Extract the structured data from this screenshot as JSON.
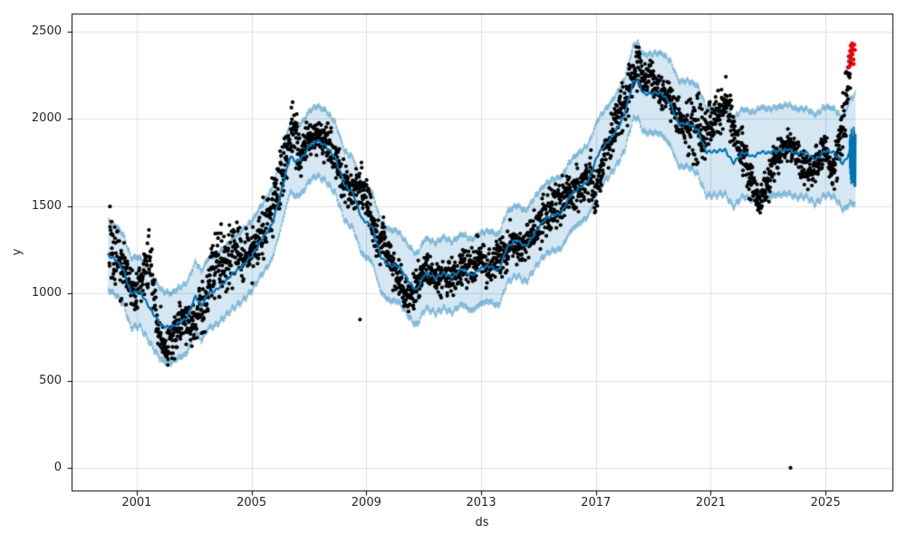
{
  "chart_data": {
    "type": "scatter",
    "title": "",
    "xlabel": "ds",
    "ylabel": "y",
    "grid": true,
    "legend": "none",
    "x_axis": {
      "ticks": [
        2001,
        2005,
        2009,
        2013,
        2017,
        2021,
        2025
      ],
      "range": [
        1998.73,
        2027.33
      ]
    },
    "y_axis": {
      "ticks": [
        0,
        500,
        1000,
        1500,
        2000,
        2500
      ],
      "range": [
        -130,
        2604
      ]
    },
    "colors": {
      "line": "#0072B2",
      "band_fill": "rgba(0,114,178,0.17)",
      "band_edge": "rgba(0,114,178,0.30)",
      "observations": "#000000",
      "anomaly": "#f20000",
      "grid": "#e0e0e0",
      "frame": "#000000",
      "text": "#262626",
      "background": "#ffffff"
    },
    "observations": {
      "points_per_year": 115,
      "seed": 42,
      "marker_radius": 2.1,
      "path": [
        [
          2000.05,
          1280,
          240
        ],
        [
          2000.3,
          1200,
          220
        ],
        [
          2000.6,
          1100,
          220
        ],
        [
          2000.9,
          1000,
          160
        ],
        [
          2001.15,
          1050,
          200
        ],
        [
          2001.45,
          1200,
          230
        ],
        [
          2001.7,
          850,
          180
        ],
        [
          2002.0,
          680,
          110
        ],
        [
          2002.3,
          750,
          160
        ],
        [
          2002.6,
          850,
          170
        ],
        [
          2002.9,
          800,
          150
        ],
        [
          2003.2,
          900,
          180
        ],
        [
          2003.5,
          1000,
          200
        ],
        [
          2003.8,
          1220,
          270
        ],
        [
          2004.1,
          1150,
          200
        ],
        [
          2004.4,
          1270,
          250
        ],
        [
          2004.7,
          1200,
          150
        ],
        [
          2005.0,
          1230,
          180
        ],
        [
          2005.3,
          1300,
          200
        ],
        [
          2005.6,
          1450,
          220
        ],
        [
          2005.9,
          1600,
          220
        ],
        [
          2006.2,
          1800,
          230
        ],
        [
          2006.45,
          1980,
          240
        ],
        [
          2006.7,
          1800,
          180
        ],
        [
          2007.0,
          1880,
          140
        ],
        [
          2007.3,
          1900,
          120
        ],
        [
          2007.6,
          1860,
          130
        ],
        [
          2007.9,
          1800,
          150
        ],
        [
          2008.2,
          1650,
          150
        ],
        [
          2008.5,
          1560,
          140
        ],
        [
          2008.8,
          1620,
          150
        ],
        [
          2009.1,
          1500,
          150
        ],
        [
          2009.35,
          1300,
          160
        ],
        [
          2009.6,
          1300,
          150
        ],
        [
          2009.9,
          1150,
          130
        ],
        [
          2010.2,
          1050,
          140
        ],
        [
          2010.5,
          975,
          110
        ],
        [
          2010.8,
          1050,
          140
        ],
        [
          2011.1,
          1150,
          140
        ],
        [
          2011.4,
          1075,
          130
        ],
        [
          2011.7,
          1100,
          140
        ],
        [
          2012.0,
          1080,
          120
        ],
        [
          2012.3,
          1140,
          140
        ],
        [
          2012.6,
          1160,
          130
        ],
        [
          2012.9,
          1200,
          140
        ],
        [
          2013.2,
          1130,
          120
        ],
        [
          2013.5,
          1200,
          160
        ],
        [
          2013.8,
          1220,
          140
        ],
        [
          2014.1,
          1300,
          140
        ],
        [
          2014.4,
          1260,
          120
        ],
        [
          2014.7,
          1320,
          130
        ],
        [
          2015.0,
          1380,
          150
        ],
        [
          2015.3,
          1450,
          170
        ],
        [
          2015.6,
          1500,
          160
        ],
        [
          2015.9,
          1560,
          170
        ],
        [
          2016.2,
          1580,
          150
        ],
        [
          2016.5,
          1620,
          140
        ],
        [
          2016.8,
          1680,
          160
        ],
        [
          2017.0,
          1560,
          140
        ],
        [
          2017.3,
          1800,
          170
        ],
        [
          2017.6,
          1900,
          170
        ],
        [
          2017.9,
          2050,
          180
        ],
        [
          2018.2,
          2200,
          180
        ],
        [
          2018.45,
          2300,
          170
        ],
        [
          2018.7,
          2220,
          140
        ],
        [
          2018.95,
          2250,
          130
        ],
        [
          2019.2,
          2150,
          110
        ],
        [
          2019.5,
          2130,
          110
        ],
        [
          2019.8,
          2050,
          130
        ],
        [
          2020.1,
          1950,
          130
        ],
        [
          2020.45,
          1880,
          360
        ],
        [
          2020.7,
          1900,
          220
        ],
        [
          2021.0,
          1970,
          150
        ],
        [
          2021.3,
          2050,
          170
        ],
        [
          2021.55,
          2100,
          170
        ],
        [
          2021.8,
          1950,
          150
        ],
        [
          2022.1,
          1800,
          160
        ],
        [
          2022.4,
          1650,
          160
        ],
        [
          2022.65,
          1500,
          90
        ],
        [
          2022.9,
          1600,
          130
        ],
        [
          2023.2,
          1750,
          130
        ],
        [
          2023.5,
          1820,
          110
        ],
        [
          2023.8,
          1850,
          110
        ],
        [
          2024.1,
          1780,
          130
        ],
        [
          2024.4,
          1700,
          120
        ],
        [
          2024.7,
          1750,
          120
        ],
        [
          2025.0,
          1820,
          110
        ],
        [
          2025.25,
          1700,
          120
        ],
        [
          2025.5,
          1850,
          180
        ],
        [
          2025.7,
          2100,
          220
        ],
        [
          2025.88,
          2320,
          140
        ]
      ],
      "outliers": [
        [
          2008.78,
          850
        ],
        [
          2023.78,
          0
        ]
      ]
    },
    "anomalies_red": [
      [
        2025.8,
        2295
      ],
      [
        2025.82,
        2330
      ],
      [
        2025.83,
        2360
      ],
      [
        2025.85,
        2305
      ],
      [
        2025.86,
        2390
      ],
      [
        2025.88,
        2420
      ],
      [
        2025.89,
        2350
      ],
      [
        2025.9,
        2380
      ],
      [
        2025.92,
        2410
      ],
      [
        2025.93,
        2432
      ],
      [
        2025.94,
        2370
      ],
      [
        2025.95,
        2400
      ],
      [
        2025.97,
        2340
      ],
      [
        2025.98,
        2315
      ],
      [
        2026.0,
        2425
      ],
      [
        2026.02,
        2395
      ]
    ],
    "forecast": {
      "trend": [
        [
          2000.0,
          1215
        ],
        [
          2000.3,
          1180
        ],
        [
          2000.55,
          1135
        ],
        [
          2000.8,
          1010
        ],
        [
          2001.1,
          1005
        ],
        [
          2001.35,
          940
        ],
        [
          2001.6,
          885
        ],
        [
          2001.9,
          815
        ],
        [
          2002.2,
          793
        ],
        [
          2002.45,
          830
        ],
        [
          2002.75,
          866
        ],
        [
          2003.05,
          980
        ],
        [
          2003.25,
          920
        ],
        [
          2003.5,
          1005
        ],
        [
          2003.8,
          1030
        ],
        [
          2004.1,
          1065
        ],
        [
          2004.45,
          1126
        ],
        [
          2004.75,
          1177
        ],
        [
          2005.05,
          1220
        ],
        [
          2005.4,
          1316
        ],
        [
          2005.7,
          1400
        ],
        [
          2006.0,
          1556
        ],
        [
          2006.35,
          1780
        ],
        [
          2006.55,
          1760
        ],
        [
          2006.8,
          1790
        ],
        [
          2007.0,
          1840
        ],
        [
          2007.28,
          1868
        ],
        [
          2007.6,
          1850
        ],
        [
          2007.9,
          1784
        ],
        [
          2008.25,
          1608
        ],
        [
          2008.55,
          1577
        ],
        [
          2008.85,
          1430
        ],
        [
          2009.2,
          1375
        ],
        [
          2009.5,
          1215
        ],
        [
          2009.8,
          1167
        ],
        [
          2010.1,
          1150
        ],
        [
          2010.45,
          1075
        ],
        [
          2010.75,
          1025
        ],
        [
          2011.05,
          1110
        ],
        [
          2011.4,
          1085
        ],
        [
          2011.7,
          1126
        ],
        [
          2012.0,
          1090
        ],
        [
          2012.35,
          1136
        ],
        [
          2012.65,
          1110
        ],
        [
          2012.95,
          1140
        ],
        [
          2013.3,
          1150
        ],
        [
          2013.6,
          1136
        ],
        [
          2013.9,
          1265
        ],
        [
          2014.25,
          1297
        ],
        [
          2014.55,
          1271
        ],
        [
          2014.85,
          1348
        ],
        [
          2015.2,
          1411
        ],
        [
          2015.5,
          1452
        ],
        [
          2015.8,
          1470
        ],
        [
          2016.1,
          1550
        ],
        [
          2016.45,
          1608
        ],
        [
          2016.75,
          1660
        ],
        [
          2017.05,
          1784
        ],
        [
          2017.4,
          1862
        ],
        [
          2017.7,
          1940
        ],
        [
          2018.0,
          2023
        ],
        [
          2018.3,
          2204
        ],
        [
          2018.45,
          2225
        ],
        [
          2018.65,
          2153
        ],
        [
          2018.95,
          2147
        ],
        [
          2019.3,
          2137
        ],
        [
          2019.6,
          2095
        ],
        [
          2019.9,
          1971
        ],
        [
          2020.2,
          1966
        ],
        [
          2020.55,
          1940
        ],
        [
          2020.85,
          1815
        ],
        [
          2021.2,
          1805
        ],
        [
          2021.5,
          1825
        ],
        [
          2021.8,
          1755
        ],
        [
          2022.1,
          1800
        ],
        [
          2022.45,
          1784
        ],
        [
          2022.75,
          1820
        ],
        [
          2023.05,
          1800
        ],
        [
          2023.4,
          1815
        ],
        [
          2023.7,
          1836
        ],
        [
          2024.0,
          1800
        ],
        [
          2024.35,
          1800
        ],
        [
          2024.65,
          1774
        ],
        [
          2024.95,
          1815
        ],
        [
          2025.3,
          1800
        ],
        [
          2025.6,
          1750
        ],
        [
          2025.84,
          1810
        ]
      ],
      "band_halfwidth": [
        [
          2000.0,
          200
        ],
        [
          2018.0,
          205
        ],
        [
          2019.5,
          240
        ],
        [
          2020.5,
          252
        ],
        [
          2025.5,
          255
        ],
        [
          2026.06,
          320
        ]
      ],
      "wiggle": {
        "slow_amp": 8,
        "slow_freq": 1.0,
        "fast_amp": 7,
        "fast_freq": 5.3,
        "edge_amp": 13,
        "edge_freq": 26
      },
      "tail": {
        "t_start": 2025.84,
        "t_end": 2026.05,
        "y_min": 1600,
        "y_max": 1955,
        "segments": 26,
        "center": 1820
      }
    }
  }
}
